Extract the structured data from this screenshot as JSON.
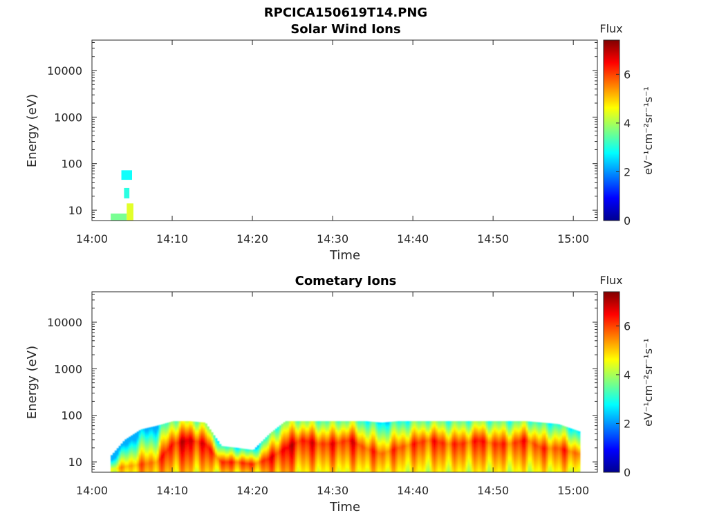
{
  "figure_title": "RPCICA150619T14.PNG",
  "colors": {
    "axis": "#262626",
    "colormap": "jet",
    "colormap_stops": [
      "#00008f",
      "#0000ff",
      "#00ffff",
      "#ffff00",
      "#ff0000",
      "#800000"
    ]
  },
  "chart_data": [
    {
      "type": "heatmap",
      "title": "Solar Wind Ions",
      "xlabel": "Time",
      "ylabel": "Energy (eV)",
      "x_ticks": [
        "14:00",
        "14:10",
        "14:20",
        "14:30",
        "14:40",
        "14:50",
        "15:00"
      ],
      "x_range": [
        "14:00",
        "15:03"
      ],
      "y_scale": "log",
      "y_ticks": [
        "10",
        "100",
        "1000",
        "10000"
      ],
      "y_range": [
        6,
        45000
      ],
      "colorbar": {
        "title": "Flux",
        "label": "eV⁻¹cm⁻²sr⁻¹s⁻¹",
        "ticks": [
          "0",
          "2",
          "4",
          "6"
        ],
        "range": [
          0,
          7.4
        ]
      },
      "bands": [
        {
          "t_start": "14:02:20",
          "t_end": "14:04:20",
          "e_low": 6,
          "e_high": 8.5,
          "flux": 3.6
        },
        {
          "t_start": "14:04:20",
          "t_end": "14:05:10",
          "e_low": 6,
          "e_high": 14,
          "flux": 4.4
        },
        {
          "t_start": "14:03:40",
          "t_end": "14:05:00",
          "e_low": 45,
          "e_high": 72,
          "flux": 2.8
        },
        {
          "t_start": "14:04:00",
          "t_end": "14:04:40",
          "e_low": 18,
          "e_high": 30,
          "flux": 3.0
        }
      ]
    },
    {
      "type": "heatmap",
      "title": "Cometary Ions",
      "xlabel": "Time",
      "ylabel": "Energy (eV)",
      "x_ticks": [
        "14:00",
        "14:10",
        "14:20",
        "14:30",
        "14:40",
        "14:50",
        "15:00"
      ],
      "x_range": [
        "14:00",
        "15:03"
      ],
      "y_scale": "log",
      "y_ticks": [
        "10",
        "100",
        "1000",
        "10000"
      ],
      "y_range": [
        6,
        45000
      ],
      "colorbar": {
        "title": "Flux",
        "label": "eV⁻¹cm⁻²sr⁻¹s⁻¹",
        "ticks": [
          "0",
          "2",
          "4",
          "6"
        ],
        "range": [
          0,
          7.4
        ]
      },
      "time_series": [
        {
          "t": "14:02:20",
          "e_high": 14,
          "peak_flux": 5.2,
          "peak_e": 7
        },
        {
          "t": "14:04:00",
          "e_high": 30,
          "peak_flux": 5.8,
          "peak_e": 8
        },
        {
          "t": "14:06:00",
          "e_high": 50,
          "peak_flux": 6.2,
          "peak_e": 9
        },
        {
          "t": "14:08:00",
          "e_high": 60,
          "peak_flux": 6.4,
          "peak_e": 10
        },
        {
          "t": "14:10:00",
          "e_high": 75,
          "peak_flux": 7.2,
          "peak_e": 25
        },
        {
          "t": "14:12:00",
          "e_high": 75,
          "peak_flux": 7.4,
          "peak_e": 30
        },
        {
          "t": "14:14:00",
          "e_high": 70,
          "peak_flux": 7.0,
          "peak_e": 25
        },
        {
          "t": "14:16:00",
          "e_high": 22,
          "peak_flux": 6.6,
          "peak_e": 10
        },
        {
          "t": "14:18:00",
          "e_high": 20,
          "peak_flux": 6.8,
          "peak_e": 10
        },
        {
          "t": "14:20:00",
          "e_high": 18,
          "peak_flux": 6.5,
          "peak_e": 9
        },
        {
          "t": "14:22:00",
          "e_high": 40,
          "peak_flux": 6.9,
          "peak_e": 12
        },
        {
          "t": "14:24:00",
          "e_high": 75,
          "peak_flux": 7.3,
          "peak_e": 20
        },
        {
          "t": "14:26:00",
          "e_high": 75,
          "peak_flux": 7.1,
          "peak_e": 30
        },
        {
          "t": "14:28:00",
          "e_high": 75,
          "peak_flux": 6.9,
          "peak_e": 25
        },
        {
          "t": "14:30:00",
          "e_high": 75,
          "peak_flux": 6.8,
          "peak_e": 25
        },
        {
          "t": "14:32:00",
          "e_high": 75,
          "peak_flux": 7.0,
          "peak_e": 30
        },
        {
          "t": "14:34:00",
          "e_high": 75,
          "peak_flux": 6.6,
          "peak_e": 20
        },
        {
          "t": "14:36:00",
          "e_high": 70,
          "peak_flux": 6.4,
          "peak_e": 15
        },
        {
          "t": "14:38:00",
          "e_high": 75,
          "peak_flux": 6.5,
          "peak_e": 20
        },
        {
          "t": "14:40:00",
          "e_high": 75,
          "peak_flux": 6.6,
          "peak_e": 25
        },
        {
          "t": "14:42:00",
          "e_high": 75,
          "peak_flux": 6.8,
          "peak_e": 30
        },
        {
          "t": "14:44:00",
          "e_high": 75,
          "peak_flux": 6.7,
          "peak_e": 25
        },
        {
          "t": "14:46:00",
          "e_high": 75,
          "peak_flux": 6.6,
          "peak_e": 25
        },
        {
          "t": "14:48:00",
          "e_high": 75,
          "peak_flux": 6.9,
          "peak_e": 30
        },
        {
          "t": "14:50:00",
          "e_high": 75,
          "peak_flux": 6.7,
          "peak_e": 25
        },
        {
          "t": "14:52:00",
          "e_high": 75,
          "peak_flux": 6.6,
          "peak_e": 25
        },
        {
          "t": "14:54:00",
          "e_high": 75,
          "peak_flux": 6.8,
          "peak_e": 30
        },
        {
          "t": "14:56:00",
          "e_high": 70,
          "peak_flux": 6.5,
          "peak_e": 20
        },
        {
          "t": "14:58:00",
          "e_high": 65,
          "peak_flux": 6.6,
          "peak_e": 20
        },
        {
          "t": "15:00:40",
          "e_high": 45,
          "peak_flux": 6.4,
          "peak_e": 15
        }
      ]
    }
  ]
}
